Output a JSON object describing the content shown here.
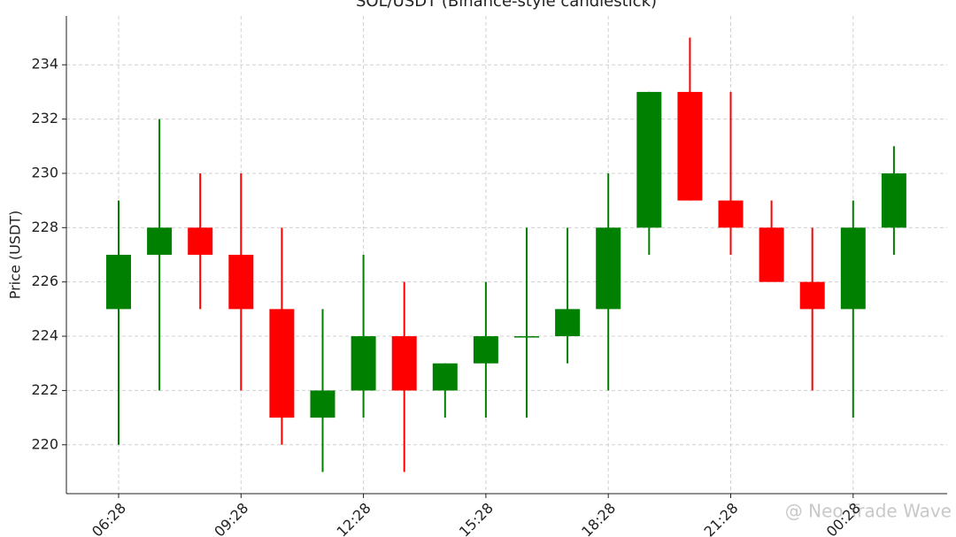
{
  "chart_data": {
    "type": "candlestick",
    "title": "SOL/USDT (Binance-style candlestick)",
    "y_label": "Price (USDT)",
    "categories": [
      "06:28",
      null,
      null,
      "09:28",
      null,
      null,
      "12:28",
      null,
      null,
      "15:28",
      null,
      null,
      "18:28",
      null,
      null,
      "21:28",
      null,
      null,
      "00:28",
      null
    ],
    "open": [
      225,
      227,
      228,
      227,
      225,
      221,
      222,
      224,
      222,
      223,
      224,
      224,
      225,
      228,
      233,
      229,
      228,
      226,
      225,
      228
    ],
    "high": [
      229,
      232,
      230,
      230,
      228,
      225,
      227,
      226,
      223,
      226,
      228,
      228,
      230,
      233,
      235,
      233,
      229,
      228,
      229,
      231
    ],
    "low": [
      220,
      222,
      225,
      222,
      220,
      219,
      221,
      219,
      221,
      221,
      221,
      223,
      222,
      227,
      229,
      227,
      226,
      222,
      221,
      227
    ],
    "close": [
      227,
      228,
      227,
      225,
      221,
      222,
      224,
      222,
      223,
      224,
      224,
      225,
      228,
      233,
      229,
      228,
      226,
      225,
      228,
      230
    ],
    "up_color": "#008000",
    "down_color": "#ff0000",
    "ylim": [
      218.2,
      235.8
    ],
    "yticks": [
      220,
      222,
      224,
      226,
      228,
      230,
      232,
      234
    ],
    "grid": true,
    "watermark": "@ Neo Trade Wave"
  }
}
